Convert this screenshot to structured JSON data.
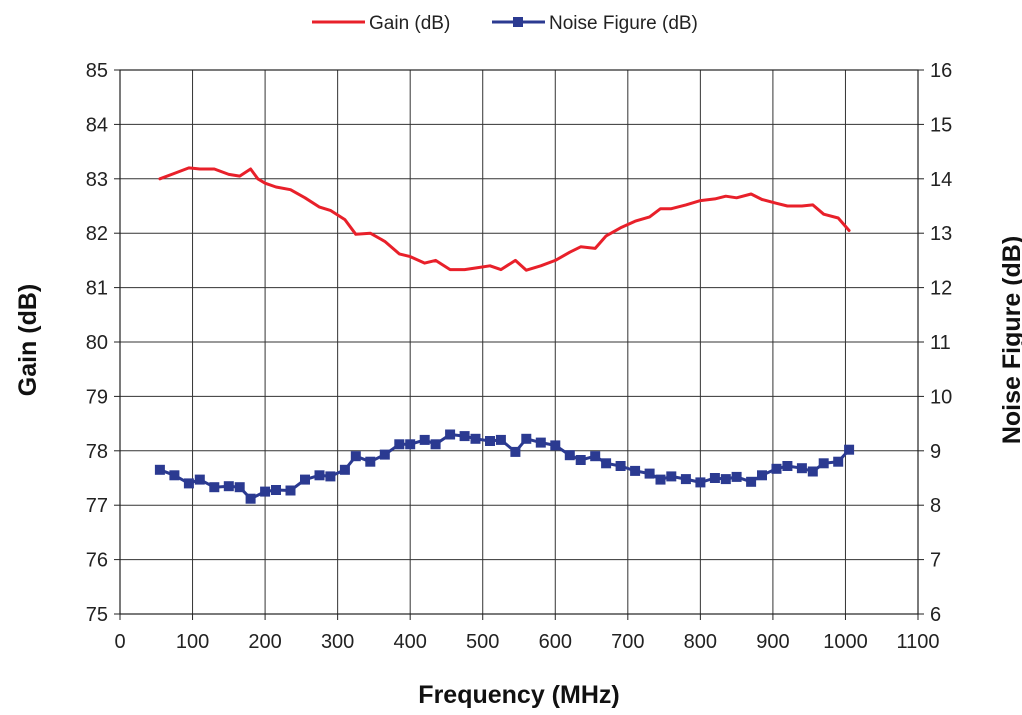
{
  "chart_data": {
    "type": "line",
    "title": "",
    "xlabel": "Frequency (MHz)",
    "ylabel_left": "Gain (dB)",
    "ylabel_right": "Noise Figure (dB)",
    "xlim": [
      0,
      1100
    ],
    "xticks": [
      0,
      100,
      200,
      300,
      400,
      500,
      600,
      700,
      800,
      900,
      1000,
      1100
    ],
    "ylim_left": [
      75,
      85
    ],
    "yticks_left": [
      75,
      76,
      77,
      78,
      79,
      80,
      81,
      82,
      83,
      84,
      85
    ],
    "ylim_right": [
      6,
      16
    ],
    "yticks_right": [
      6,
      7,
      8,
      9,
      10,
      11,
      12,
      13,
      14,
      15,
      16
    ],
    "grid": true,
    "legend_position": "top-center",
    "series": [
      {
        "name": "Gain (dB)",
        "axis": "left",
        "color": "#e8202a",
        "marker": "none",
        "x": [
          55,
          75,
          95,
          110,
          130,
          150,
          165,
          180,
          190,
          200,
          215,
          235,
          255,
          275,
          290,
          310,
          325,
          345,
          365,
          385,
          400,
          420,
          435,
          455,
          475,
          490,
          510,
          525,
          545,
          560,
          580,
          600,
          620,
          635,
          655,
          670,
          690,
          710,
          730,
          745,
          760,
          780,
          800,
          820,
          835,
          850,
          870,
          885,
          905,
          920,
          940,
          955,
          970,
          990,
          1005
        ],
        "y": [
          83.0,
          83.1,
          83.2,
          83.18,
          83.18,
          83.08,
          83.05,
          83.18,
          83.0,
          82.92,
          82.85,
          82.8,
          82.65,
          82.48,
          82.42,
          82.25,
          81.98,
          82.0,
          81.85,
          81.62,
          81.57,
          81.45,
          81.5,
          81.33,
          81.33,
          81.36,
          81.4,
          81.33,
          81.5,
          81.32,
          81.4,
          81.5,
          81.65,
          81.75,
          81.72,
          81.95,
          82.1,
          82.22,
          82.3,
          82.45,
          82.45,
          82.52,
          82.6,
          82.63,
          82.68,
          82.65,
          82.72,
          82.62,
          82.55,
          82.5,
          82.5,
          82.52,
          82.35,
          82.28,
          82.05
        ]
      },
      {
        "name": "Noise Figure (dB)",
        "axis": "right",
        "color": "#2b3a91",
        "marker": "square",
        "x": [
          55,
          75,
          95,
          110,
          130,
          150,
          165,
          180,
          200,
          215,
          235,
          255,
          275,
          290,
          310,
          325,
          345,
          365,
          385,
          400,
          420,
          435,
          455,
          475,
          490,
          510,
          525,
          545,
          560,
          580,
          600,
          620,
          635,
          655,
          670,
          690,
          710,
          730,
          745,
          760,
          780,
          800,
          820,
          835,
          850,
          870,
          885,
          905,
          920,
          940,
          955,
          970,
          990,
          1005
        ],
        "y": [
          8.65,
          8.55,
          8.4,
          8.47,
          8.33,
          8.35,
          8.33,
          8.12,
          8.25,
          8.28,
          8.27,
          8.47,
          8.55,
          8.53,
          8.65,
          8.9,
          8.8,
          8.93,
          9.12,
          9.12,
          9.2,
          9.12,
          9.3,
          9.27,
          9.22,
          9.18,
          9.2,
          8.98,
          9.22,
          9.15,
          9.1,
          8.92,
          8.83,
          8.9,
          8.77,
          8.72,
          8.63,
          8.58,
          8.47,
          8.53,
          8.48,
          8.42,
          8.5,
          8.48,
          8.52,
          8.43,
          8.55,
          8.67,
          8.72,
          8.68,
          8.62,
          8.77,
          8.8,
          9.02
        ]
      }
    ]
  }
}
